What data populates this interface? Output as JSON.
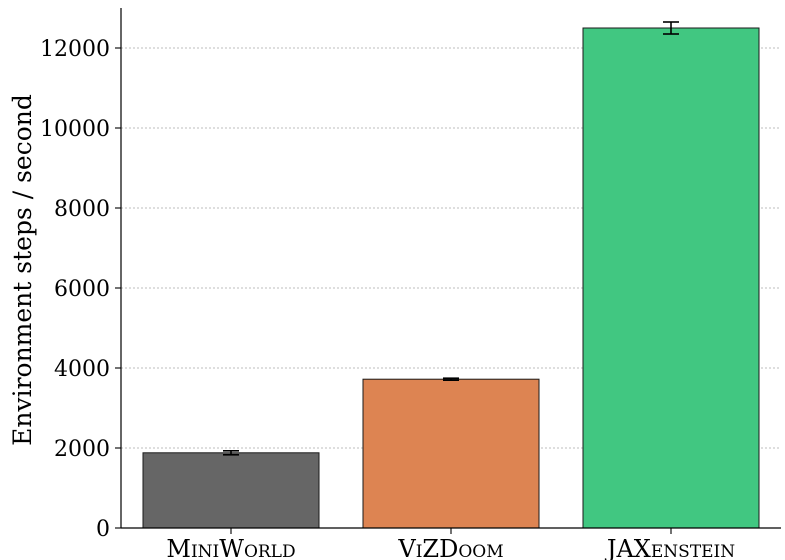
{
  "chart_data": {
    "type": "bar",
    "title": "",
    "xlabel": "",
    "ylabel": "Environment steps / second",
    "categories": [
      "MiniWorld",
      "ViZDoom",
      "JAXenstein"
    ],
    "values": [
      1880,
      3720,
      12500
    ],
    "errors": [
      50,
      25,
      150
    ],
    "colors": [
      "#666666",
      "#dd8452",
      "#41c781"
    ],
    "ylim": [
      0,
      13000
    ],
    "yticks": [
      0,
      2000,
      4000,
      6000,
      8000,
      10000,
      12000
    ],
    "grid": "y-dotted",
    "legend": "none"
  }
}
